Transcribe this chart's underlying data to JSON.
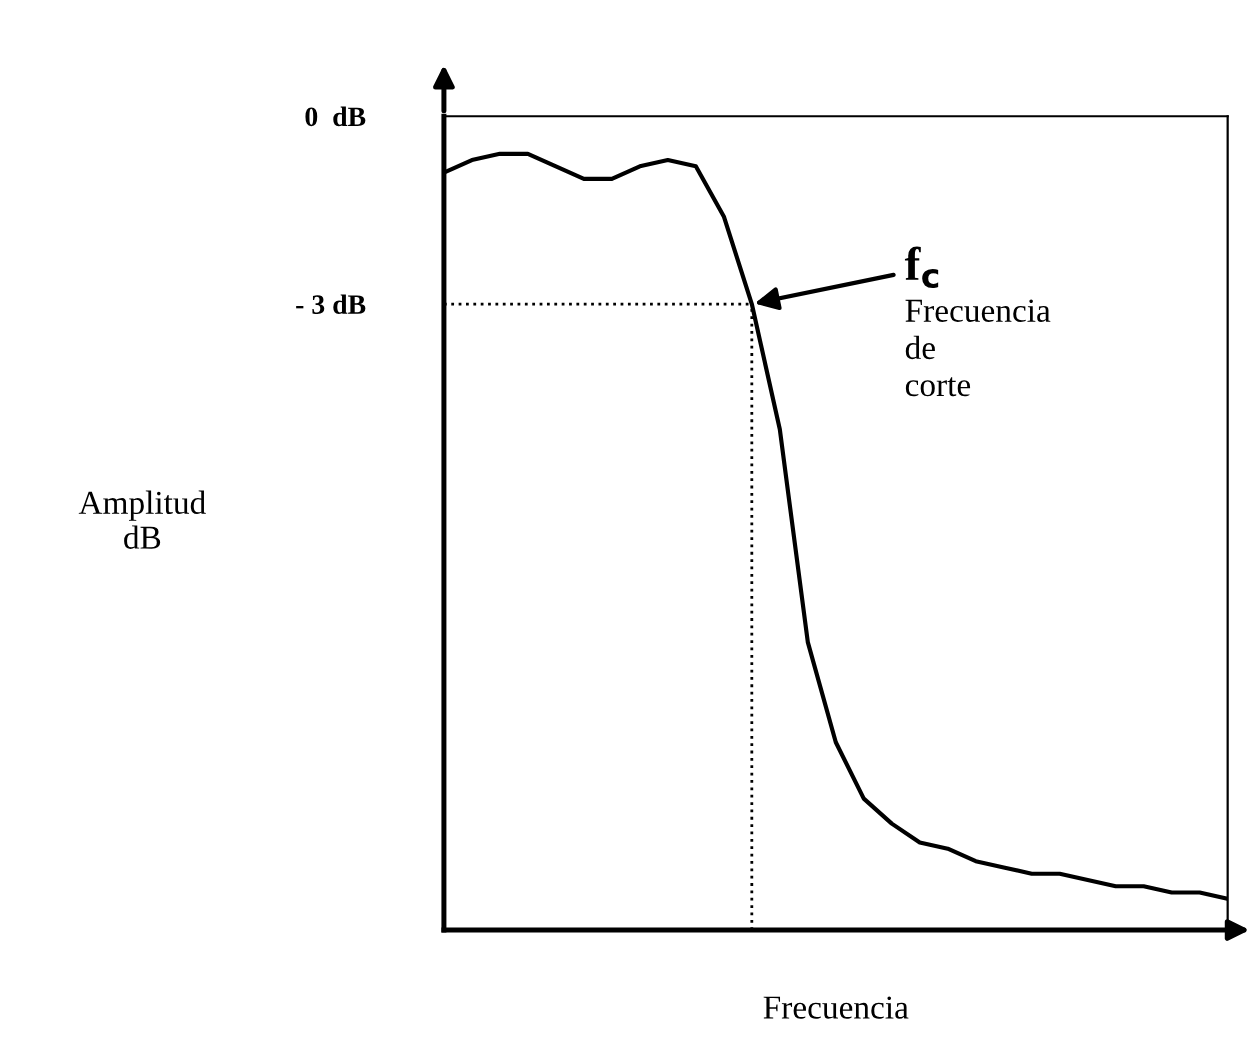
{
  "chart_data": {
    "type": "line",
    "xlabel": "Frecuencia",
    "ylabel": "Amplitud\ndB",
    "categories": [
      null,
      null,
      null,
      null,
      null,
      null,
      null,
      null,
      null,
      null,
      null,
      null,
      null,
      null,
      null,
      null,
      null,
      null,
      null,
      null,
      null,
      null,
      null,
      null,
      null,
      null,
      null,
      null,
      null
    ],
    "series": [
      {
        "color": "#000000",
        "values": [
          -0.9,
          -0.7,
          -0.6,
          -0.6,
          -0.8,
          -1.0,
          -1.0,
          -0.8,
          -0.7,
          -0.8,
          -1.6,
          -3.0,
          -5.0,
          -8.4,
          -10.0,
          -10.9,
          -11.3,
          -11.6,
          -11.7,
          -11.9,
          -12.0,
          -12.1,
          -12.1,
          -12.2,
          -12.3,
          -12.3,
          -12.4,
          -12.4,
          -12.5
        ]
      }
    ],
    "ylim": [
      -13,
      0
    ],
    "yticks": [
      {
        "value": 0,
        "label": "0  dB"
      },
      {
        "value": -3,
        "label": "- 3 dB"
      }
    ],
    "ref_lines": [
      {
        "axis": "y",
        "value": -3,
        "line_style": "dotted",
        "color": "#000000"
      }
    ],
    "annotations": [
      "f$_{c}$",
      "Frecuencia\nde\ncorte"
    ],
    "grid": false,
    "legend": false,
    "marker": "none",
    "line_style": "solid"
  }
}
